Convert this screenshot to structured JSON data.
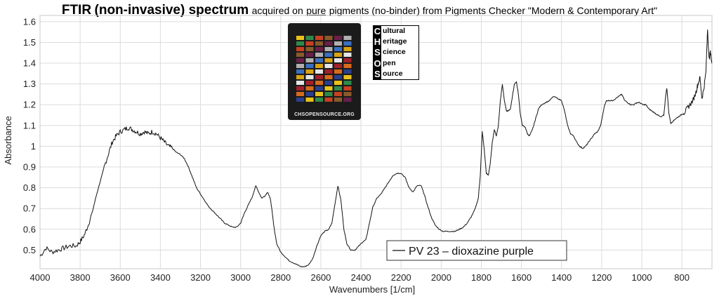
{
  "title": {
    "bold1": "FTIR",
    "bold2": "(non-invasive) spectrum",
    "part1": "acquired on",
    "underlined": "pure",
    "part2": "pigments (no-binder) from Pigments Checker \"Modern & Contemporary Art\""
  },
  "logo": {
    "url_text": "CHSOPENSOURCE.ORG",
    "rows": [
      {
        "letter": "C",
        "rest": "ultural"
      },
      {
        "letter": "H",
        "rest": "eritage"
      },
      {
        "letter": "S",
        "rest": "cience"
      },
      {
        "letter": "O",
        "rest": "pen"
      },
      {
        "letter": "S",
        "rest": "ource"
      }
    ]
  },
  "chart_data": {
    "type": "line",
    "xlabel": "Wavenumbers [1/cm]",
    "ylabel": "Absorbance",
    "xlim": [
      4000,
      650
    ],
    "ylim": [
      0.41,
      1.63
    ],
    "x_reversed": true,
    "x_ticks": [
      4000,
      3800,
      3600,
      3400,
      3200,
      3000,
      2800,
      2600,
      2400,
      2200,
      2000,
      1800,
      1600,
      1400,
      1200,
      1000,
      800
    ],
    "y_ticks": [
      0.5,
      0.6,
      0.7,
      0.8,
      0.9,
      1,
      1.1,
      1.2,
      1.3,
      1.4,
      1.5,
      1.6
    ],
    "grid": true,
    "legend_position": "bottom-center",
    "line_color": "#111111",
    "series": [
      {
        "name": "PV 23 – dioxazine purple",
        "points": [
          [
            4000,
            0.47
          ],
          [
            3970,
            0.51
          ],
          [
            3940,
            0.49
          ],
          [
            3910,
            0.5
          ],
          [
            3880,
            0.51
          ],
          [
            3850,
            0.52
          ],
          [
            3820,
            0.52
          ],
          [
            3800,
            0.54
          ],
          [
            3780,
            0.57
          ],
          [
            3760,
            0.62
          ],
          [
            3740,
            0.68
          ],
          [
            3720,
            0.76
          ],
          [
            3700,
            0.83
          ],
          [
            3680,
            0.9
          ],
          [
            3660,
            0.96
          ],
          [
            3640,
            1.02
          ],
          [
            3620,
            1.05
          ],
          [
            3600,
            1.07
          ],
          [
            3580,
            1.08
          ],
          [
            3560,
            1.09
          ],
          [
            3540,
            1.08
          ],
          [
            3520,
            1.07
          ],
          [
            3500,
            1.06
          ],
          [
            3480,
            1.07
          ],
          [
            3460,
            1.06
          ],
          [
            3440,
            1.07
          ],
          [
            3420,
            1.06
          ],
          [
            3400,
            1.04
          ],
          [
            3380,
            1.02
          ],
          [
            3360,
            1.0
          ],
          [
            3340,
            0.99
          ],
          [
            3320,
            0.97
          ],
          [
            3300,
            0.96
          ],
          [
            3280,
            0.94
          ],
          [
            3260,
            0.9
          ],
          [
            3240,
            0.85
          ],
          [
            3220,
            0.8
          ],
          [
            3200,
            0.77
          ],
          [
            3180,
            0.74
          ],
          [
            3160,
            0.71
          ],
          [
            3140,
            0.69
          ],
          [
            3120,
            0.67
          ],
          [
            3100,
            0.65
          ],
          [
            3080,
            0.63
          ],
          [
            3060,
            0.62
          ],
          [
            3040,
            0.61
          ],
          [
            3020,
            0.61
          ],
          [
            3000,
            0.63
          ],
          [
            2980,
            0.68
          ],
          [
            2960,
            0.72
          ],
          [
            2940,
            0.76
          ],
          [
            2925,
            0.81
          ],
          [
            2910,
            0.78
          ],
          [
            2895,
            0.75
          ],
          [
            2880,
            0.76
          ],
          [
            2865,
            0.78
          ],
          [
            2850,
            0.74
          ],
          [
            2835,
            0.62
          ],
          [
            2820,
            0.53
          ],
          [
            2800,
            0.49
          ],
          [
            2780,
            0.47
          ],
          [
            2760,
            0.45
          ],
          [
            2740,
            0.44
          ],
          [
            2720,
            0.43
          ],
          [
            2700,
            0.42
          ],
          [
            2680,
            0.42
          ],
          [
            2660,
            0.43
          ],
          [
            2640,
            0.46
          ],
          [
            2620,
            0.52
          ],
          [
            2600,
            0.57
          ],
          [
            2580,
            0.59
          ],
          [
            2560,
            0.6
          ],
          [
            2545,
            0.63
          ],
          [
            2530,
            0.72
          ],
          [
            2515,
            0.81
          ],
          [
            2500,
            0.74
          ],
          [
            2485,
            0.6
          ],
          [
            2470,
            0.53
          ],
          [
            2450,
            0.5
          ],
          [
            2430,
            0.5
          ],
          [
            2410,
            0.52
          ],
          [
            2390,
            0.54
          ],
          [
            2375,
            0.55
          ],
          [
            2360,
            0.62
          ],
          [
            2340,
            0.71
          ],
          [
            2320,
            0.75
          ],
          [
            2300,
            0.77
          ],
          [
            2280,
            0.8
          ],
          [
            2260,
            0.83
          ],
          [
            2240,
            0.86
          ],
          [
            2220,
            0.87
          ],
          [
            2200,
            0.87
          ],
          [
            2180,
            0.85
          ],
          [
            2160,
            0.8
          ],
          [
            2140,
            0.78
          ],
          [
            2120,
            0.81
          ],
          [
            2100,
            0.81
          ],
          [
            2085,
            0.77
          ],
          [
            2070,
            0.72
          ],
          [
            2050,
            0.66
          ],
          [
            2030,
            0.62
          ],
          [
            2010,
            0.6
          ],
          [
            1990,
            0.59
          ],
          [
            1970,
            0.59
          ],
          [
            1950,
            0.59
          ],
          [
            1930,
            0.59
          ],
          [
            1910,
            0.6
          ],
          [
            1890,
            0.61
          ],
          [
            1870,
            0.63
          ],
          [
            1850,
            0.66
          ],
          [
            1830,
            0.7
          ],
          [
            1815,
            0.75
          ],
          [
            1805,
            0.86
          ],
          [
            1795,
            1.07
          ],
          [
            1785,
            0.98
          ],
          [
            1775,
            0.87
          ],
          [
            1765,
            0.86
          ],
          [
            1755,
            0.92
          ],
          [
            1745,
            1.02
          ],
          [
            1735,
            1.08
          ],
          [
            1725,
            1.05
          ],
          [
            1715,
            1.1
          ],
          [
            1705,
            1.22
          ],
          [
            1695,
            1.3
          ],
          [
            1685,
            1.22
          ],
          [
            1675,
            1.17
          ],
          [
            1665,
            1.17
          ],
          [
            1655,
            1.18
          ],
          [
            1645,
            1.24
          ],
          [
            1635,
            1.3
          ],
          [
            1625,
            1.31
          ],
          [
            1615,
            1.25
          ],
          [
            1605,
            1.15
          ],
          [
            1595,
            1.1
          ],
          [
            1580,
            1.09
          ],
          [
            1570,
            1.06
          ],
          [
            1560,
            1.05
          ],
          [
            1545,
            1.08
          ],
          [
            1530,
            1.13
          ],
          [
            1515,
            1.18
          ],
          [
            1500,
            1.2
          ],
          [
            1480,
            1.21
          ],
          [
            1460,
            1.22
          ],
          [
            1440,
            1.24
          ],
          [
            1420,
            1.23
          ],
          [
            1400,
            1.22
          ],
          [
            1385,
            1.17
          ],
          [
            1370,
            1.1
          ],
          [
            1355,
            1.06
          ],
          [
            1340,
            1.05
          ],
          [
            1325,
            1.02
          ],
          [
            1310,
            1.0
          ],
          [
            1295,
            0.99
          ],
          [
            1280,
            1.0
          ],
          [
            1265,
            1.02
          ],
          [
            1250,
            1.04
          ],
          [
            1235,
            1.06
          ],
          [
            1220,
            1.07
          ],
          [
            1205,
            1.1
          ],
          [
            1195,
            1.15
          ],
          [
            1185,
            1.2
          ],
          [
            1175,
            1.22
          ],
          [
            1160,
            1.22
          ],
          [
            1145,
            1.22
          ],
          [
            1130,
            1.23
          ],
          [
            1115,
            1.24
          ],
          [
            1100,
            1.25
          ],
          [
            1085,
            1.22
          ],
          [
            1070,
            1.21
          ],
          [
            1055,
            1.2
          ],
          [
            1040,
            1.2
          ],
          [
            1025,
            1.21
          ],
          [
            1010,
            1.21
          ],
          [
            995,
            1.2
          ],
          [
            980,
            1.2
          ],
          [
            965,
            1.18
          ],
          [
            950,
            1.17
          ],
          [
            935,
            1.16
          ],
          [
            920,
            1.15
          ],
          [
            905,
            1.14
          ],
          [
            890,
            1.15
          ],
          [
            880,
            1.25
          ],
          [
            875,
            1.28
          ],
          [
            865,
            1.16
          ],
          [
            855,
            1.11
          ],
          [
            845,
            1.12
          ],
          [
            835,
            1.13
          ],
          [
            820,
            1.14
          ],
          [
            805,
            1.15
          ],
          [
            790,
            1.16
          ],
          [
            775,
            1.18
          ],
          [
            760,
            1.2
          ],
          [
            745,
            1.22
          ],
          [
            730,
            1.26
          ],
          [
            720,
            1.3
          ],
          [
            710,
            1.33
          ],
          [
            700,
            1.23
          ],
          [
            690,
            1.28
          ],
          [
            680,
            1.36
          ],
          [
            672,
            1.57
          ],
          [
            665,
            1.42
          ],
          [
            658,
            1.45
          ],
          [
            650,
            1.4
          ]
        ]
      }
    ]
  }
}
